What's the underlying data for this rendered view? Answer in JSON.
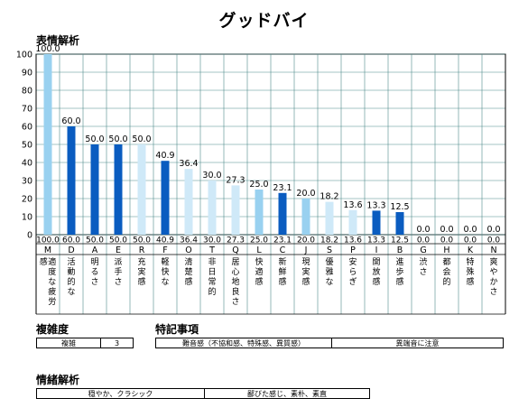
{
  "title": "グッドバイ",
  "section_emotion": "表情解析",
  "section_complexity": "複雑度",
  "section_features": "特記事項",
  "section_mood": "情緒解析",
  "complexity": {
    "label": "複雑",
    "value": "3"
  },
  "features": [
    "難音感（不協和感、特殊感、異質感）",
    "異端音に注意"
  ],
  "mood": [
    "穏やか、クラシック",
    "鄙びた感じ、素朴、素直"
  ],
  "chart_data": {
    "type": "bar",
    "ylim": [
      0,
      100
    ],
    "yticks": [
      0,
      10,
      20,
      30,
      40,
      50,
      60,
      70,
      80,
      90,
      100
    ],
    "letters": [
      "M",
      "D",
      "A",
      "E",
      "R",
      "F",
      "O",
      "T",
      "Q",
      "L",
      "C",
      "J",
      "S",
      "P",
      "I",
      "B",
      "G",
      "H",
      "K",
      "N"
    ],
    "values": [
      100.0,
      60.0,
      50.0,
      50.0,
      50.0,
      40.9,
      36.4,
      30.0,
      27.3,
      25.0,
      23.1,
      20.0,
      18.2,
      13.6,
      13.3,
      12.5,
      0.0,
      0.0,
      0.0,
      0.0
    ],
    "value_labels": [
      "100.0",
      "60.0",
      "50.0",
      "50.0",
      "50.0",
      "40.9",
      "36.4",
      "30.0",
      "27.3",
      "25.0",
      "23.1",
      "20.0",
      "18.2",
      "13.6",
      "13.3",
      "12.5",
      "0.0",
      "0.0",
      "0.0",
      "0.0"
    ],
    "descriptions": [
      "適度な疲労感",
      "活動的な",
      "明るさ",
      "派手さ",
      "充実感",
      "軽快な",
      "清楚感",
      "非日常的",
      "居心地良さ",
      "快適感",
      "新鮮感",
      "現実感",
      "優雅な",
      "安らぎ",
      "開放感",
      "進歩感",
      "渋さ",
      "都会的",
      "特殊感",
      "爽やかさ"
    ],
    "colors": {
      "light": "#99d1f0",
      "dark": "#0a5cc0",
      "pale": "#cfe9f8",
      "grid": "#4d8a8a",
      "border": "#000000"
    },
    "bar_styles": [
      "light",
      "dark",
      "dark",
      "dark",
      "pale",
      "dark",
      "pale",
      "pale",
      "pale",
      "light",
      "dark",
      "light",
      "pale",
      "pale",
      "dark",
      "dark",
      "light",
      "light",
      "light",
      "light"
    ]
  }
}
